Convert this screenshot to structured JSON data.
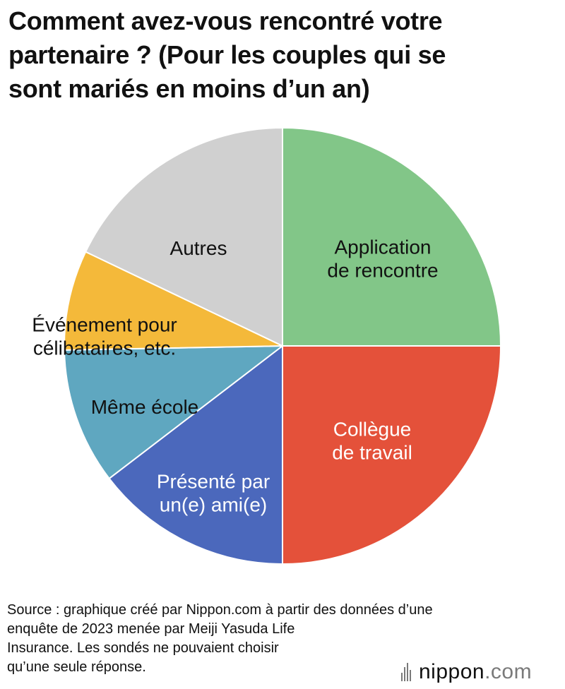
{
  "title_lines": [
    "Comment avez-vous rencontré votre",
    "partenaire ? (Pour les couples qui se",
    "sont mariés en moins d’un an)"
  ],
  "chart_data": {
    "type": "pie",
    "title": "Comment avez-vous rencontré votre partenaire ? (Pour les couples qui se sont mariés en moins d’un an)",
    "start_angle_deg": 0,
    "direction": "clockwise",
    "slices": [
      {
        "label": [
          "Application",
          "de rencontre"
        ],
        "value": 25.0,
        "color": "#82c688",
        "text_color": "#111111"
      },
      {
        "label": [
          "Collègue",
          "de travail"
        ],
        "value": 25.0,
        "color": "#e4513a",
        "text_color": "#ffffff"
      },
      {
        "label": [
          "Présenté par",
          "un(e) ami(e)"
        ],
        "value": 14.6,
        "color": "#4b68bc",
        "text_color": "#ffffff"
      },
      {
        "label": [
          "Même école"
        ],
        "value": 10.1,
        "color": "#5fa7c0",
        "text_color": "#111111"
      },
      {
        "label": [
          "Événement pour",
          "célibataires, etc."
        ],
        "value": 7.4,
        "color": "#f4b93a",
        "text_color": "#111111"
      },
      {
        "label": [
          "Autres"
        ],
        "value": 17.9,
        "color": "#d0d0d0",
        "text_color": "#111111"
      }
    ]
  },
  "source_lines": [
    "Source : graphique créé par Nippon.com à partir des données d’une",
    "enquête de 2023 menée par Meiji Yasuda Life",
    "Insurance. Les sondés ne pouvaient choisir",
    "qu’une seule réponse."
  ],
  "logo": {
    "name": "nippon",
    "suffix": ".com"
  }
}
